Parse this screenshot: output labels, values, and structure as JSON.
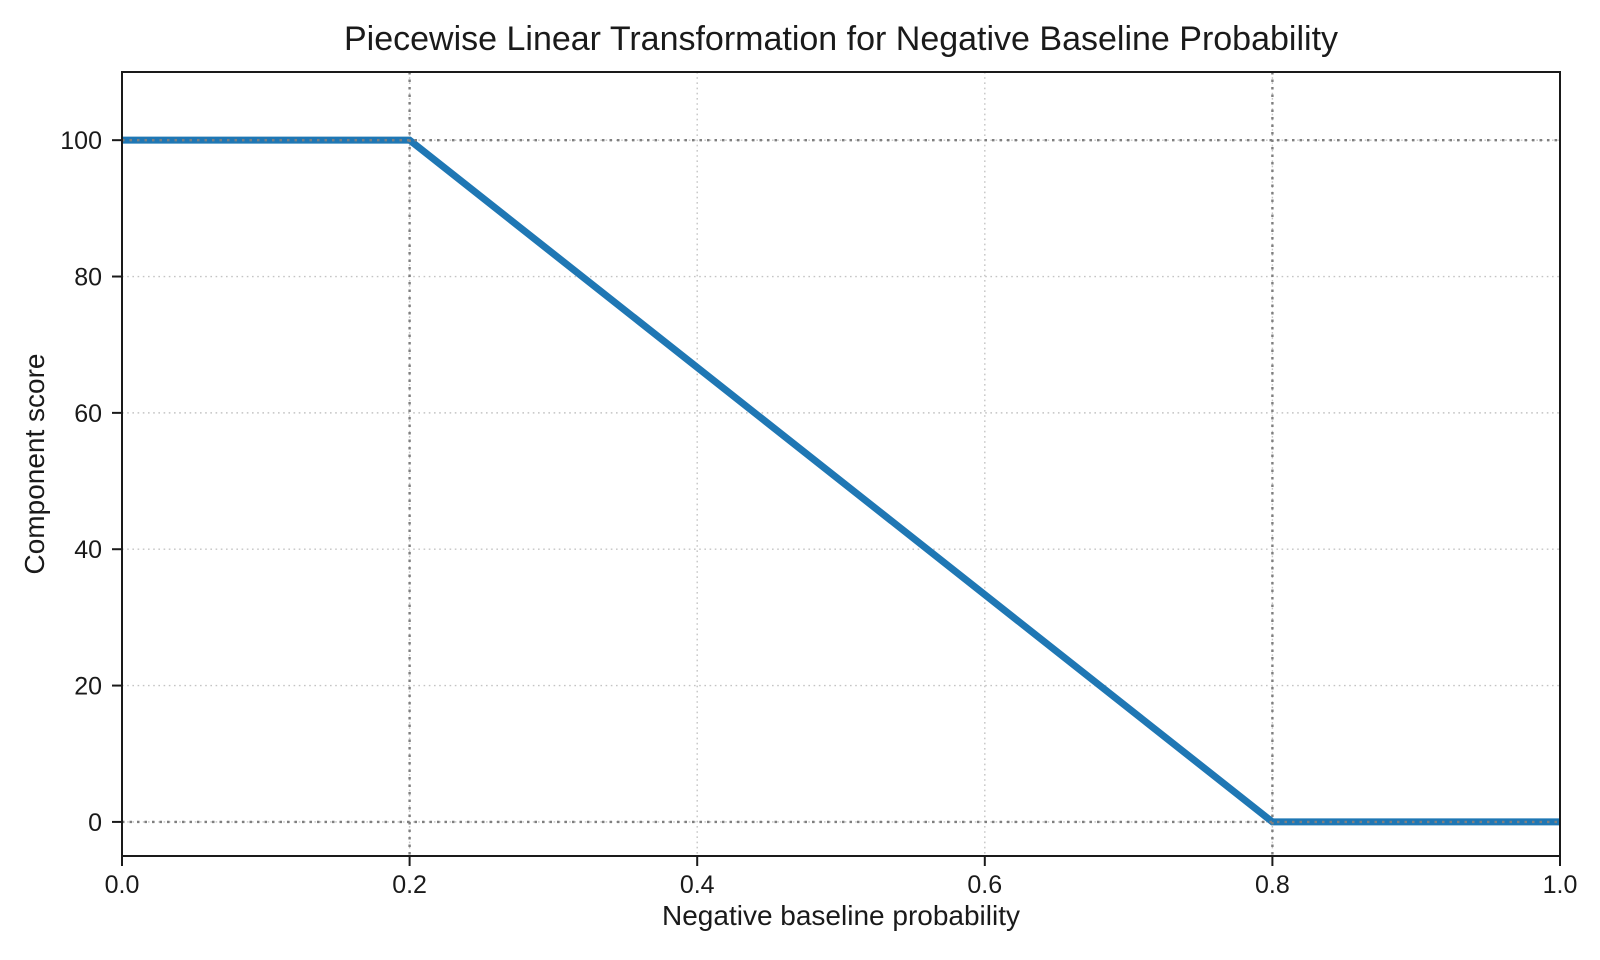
{
  "figure": {
    "background": "#ffffff"
  },
  "chart_data": {
    "type": "line",
    "title": "Piecewise Linear Transformation for Negative Baseline Probability",
    "xlabel": "Negative baseline probability",
    "ylabel": "Component score",
    "xlim": [
      0.0,
      1.0
    ],
    "ylim": [
      -5,
      110
    ],
    "xticks": [
      0.0,
      0.2,
      0.4,
      0.6,
      0.8,
      1.0
    ],
    "xtick_labels": [
      "0.0",
      "0.2",
      "0.4",
      "0.6",
      "0.8",
      "1.0"
    ],
    "yticks": [
      0,
      20,
      40,
      60,
      80,
      100
    ],
    "ytick_labels": [
      "0",
      "20",
      "40",
      "60",
      "80",
      "100"
    ],
    "grid": true,
    "grid_style": "dotted",
    "grid_color": "#c4c4c4",
    "legend_position": "none",
    "series": [
      {
        "name": "component_score",
        "color": "#1f77b4",
        "linewidth": 7,
        "points": [
          [
            0.0,
            100
          ],
          [
            0.2,
            100
          ],
          [
            0.8,
            0
          ],
          [
            1.0,
            0
          ]
        ]
      }
    ],
    "guide_lines": {
      "x": [
        0.2,
        0.8
      ],
      "y": [
        0,
        100
      ],
      "color": "#7f7f7f",
      "style": "dotted"
    },
    "spine_color": "#1a1a1a",
    "tick_color": "#1a1a1a",
    "text_color": "#1a1a1a"
  }
}
